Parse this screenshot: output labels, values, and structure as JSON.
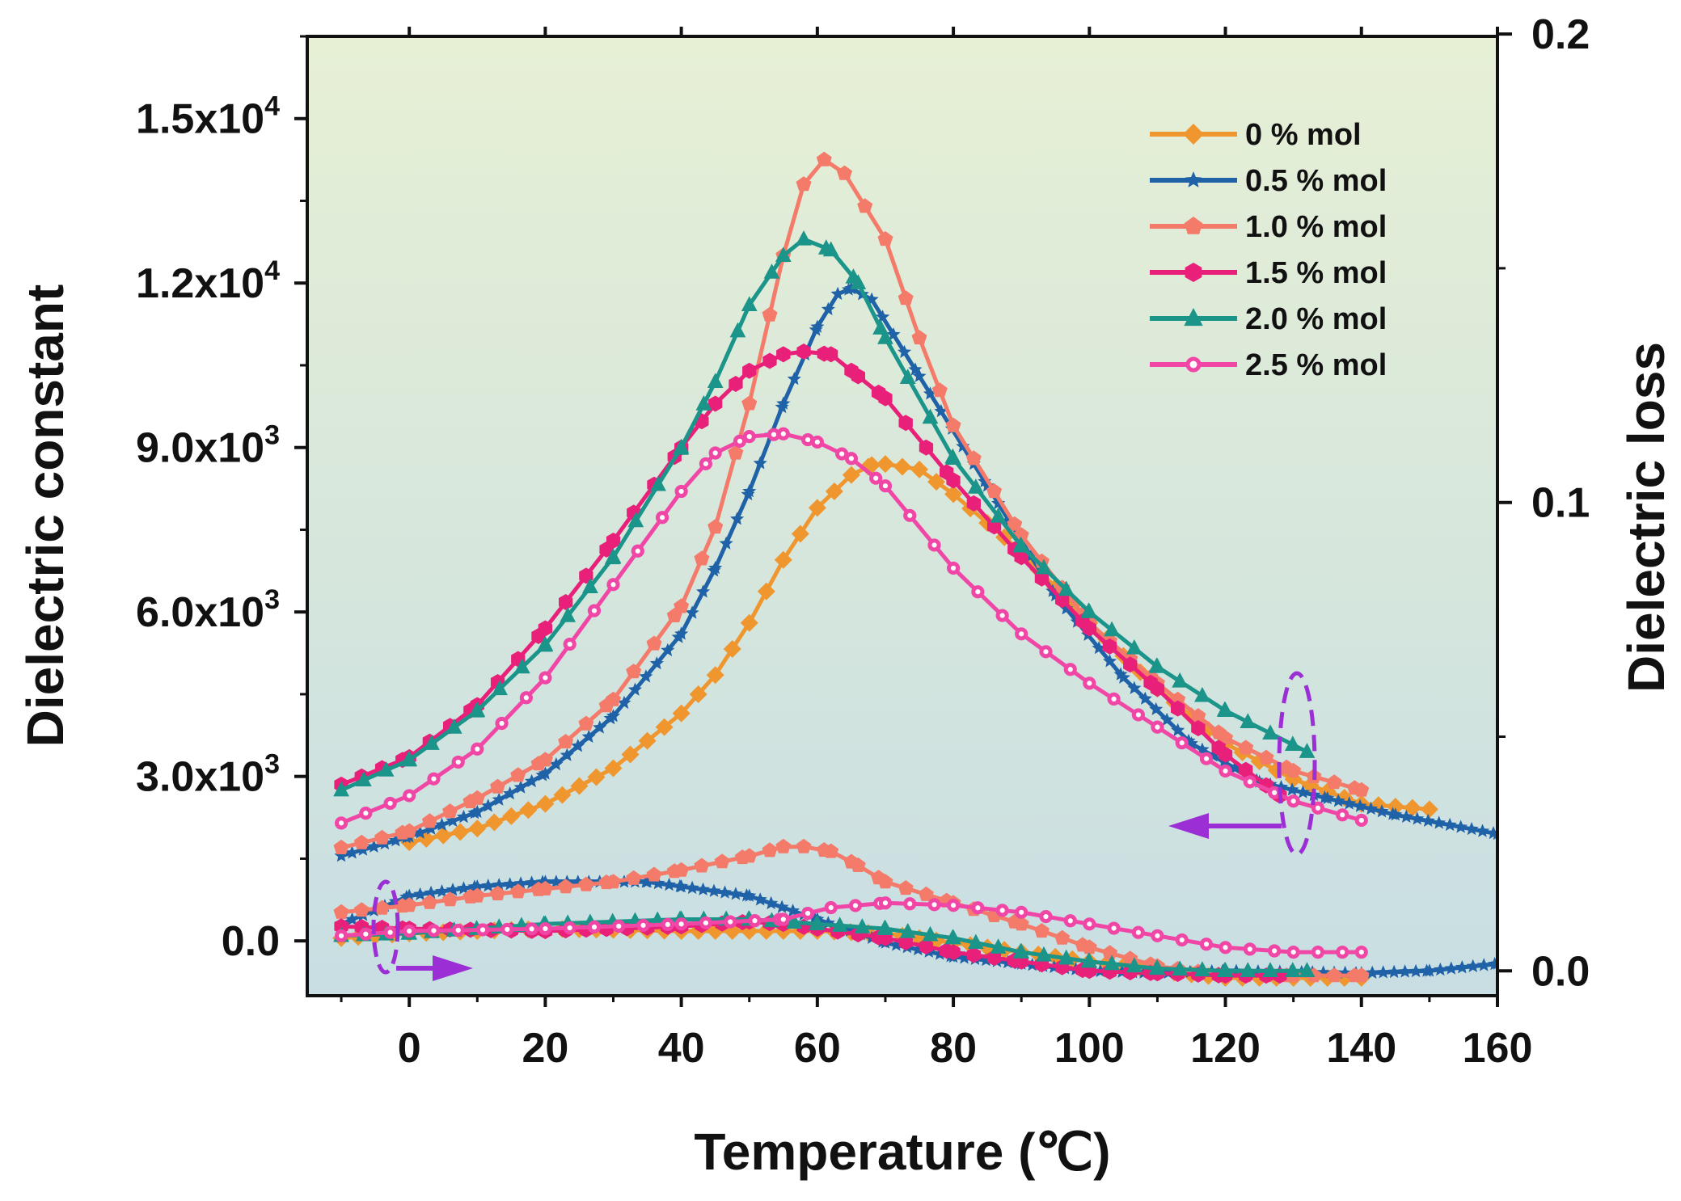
{
  "chart_data": {
    "type": "line",
    "title": "",
    "xlabel": "Temperature (℃)",
    "ylabel": "Dielectric constant",
    "y2label": "Dielectric loss",
    "xlim": [
      -15,
      160
    ],
    "ylim": [
      -1000,
      16500
    ],
    "y2lim": [
      -0.0053,
      0.1995
    ],
    "legend_position": "top-right",
    "x_tick_labels": [
      "0",
      "20",
      "40",
      "60",
      "80",
      "100",
      "120",
      "140",
      "160"
    ],
    "y_tick_labels": [
      {
        "mantissa": "0.0",
        "exp": ""
      },
      {
        "mantissa": "3.0x10",
        "exp": "3"
      },
      {
        "mantissa": "6.0x10",
        "exp": "3"
      },
      {
        "mantissa": "9.0x10",
        "exp": "3"
      },
      {
        "mantissa": "1.2x10",
        "exp": "4"
      },
      {
        "mantissa": "1.5x10",
        "exp": "4"
      }
    ],
    "y2_tick_labels": [
      "0.0",
      "0.1",
      "0.2"
    ],
    "series": [
      {
        "name": "0 % mol",
        "color": "#F0962E",
        "marker": "diamond",
        "permittivity": [
          [
            0,
            1800
          ],
          [
            10,
            2050
          ],
          [
            20,
            2500
          ],
          [
            30,
            3150
          ],
          [
            40,
            4150
          ],
          [
            45,
            4850
          ],
          [
            50,
            5800
          ],
          [
            55,
            6950
          ],
          [
            60,
            7900
          ],
          [
            65,
            8500
          ],
          [
            68,
            8680
          ],
          [
            70,
            8700
          ],
          [
            75,
            8600
          ],
          [
            80,
            8150
          ],
          [
            90,
            7100
          ],
          [
            100,
            5800
          ],
          [
            110,
            4600
          ],
          [
            120,
            3600
          ],
          [
            130,
            2950
          ],
          [
            140,
            2500
          ],
          [
            150,
            2400
          ]
        ],
        "loss": [
          [
            -10,
            0.007
          ],
          [
            0,
            0.008
          ],
          [
            20,
            0.009
          ],
          [
            40,
            0.0085
          ],
          [
            60,
            0.0085
          ],
          [
            70,
            0.008
          ],
          [
            80,
            0.006
          ],
          [
            90,
            0.004
          ],
          [
            100,
            0.002
          ],
          [
            110,
            0.0
          ],
          [
            120,
            -0.0015
          ],
          [
            130,
            -0.0015
          ],
          [
            140,
            -0.0015
          ]
        ]
      },
      {
        "name": "0.5 % mol",
        "color": "#1F62A8",
        "marker": "star",
        "permittivity": [
          [
            -10,
            1550
          ],
          [
            0,
            1900
          ],
          [
            10,
            2350
          ],
          [
            20,
            3050
          ],
          [
            30,
            4100
          ],
          [
            40,
            5600
          ],
          [
            45,
            6800
          ],
          [
            50,
            8200
          ],
          [
            55,
            9800
          ],
          [
            60,
            11200
          ],
          [
            63,
            11800
          ],
          [
            65,
            11900
          ],
          [
            68,
            11700
          ],
          [
            75,
            10300
          ],
          [
            85,
            8300
          ],
          [
            95,
            6300
          ],
          [
            105,
            4800
          ],
          [
            115,
            3600
          ],
          [
            125,
            2900
          ],
          [
            135,
            2600
          ],
          [
            145,
            2300
          ],
          [
            160,
            1950
          ]
        ],
        "loss": [
          [
            -10,
            0.01
          ],
          [
            0,
            0.016
          ],
          [
            10,
            0.018
          ],
          [
            20,
            0.019
          ],
          [
            30,
            0.019
          ],
          [
            35,
            0.019
          ],
          [
            40,
            0.018
          ],
          [
            50,
            0.016
          ],
          [
            60,
            0.011
          ],
          [
            70,
            0.006
          ],
          [
            80,
            0.003
          ],
          [
            90,
            0.0015
          ],
          [
            100,
            0.0
          ],
          [
            110,
            -0.0005
          ],
          [
            120,
            0.0
          ],
          [
            140,
            -0.0005
          ],
          [
            150,
            0.0
          ],
          [
            160,
            0.0015
          ]
        ]
      },
      {
        "name": "1.0 % mol",
        "color": "#F47A6A",
        "marker": "pentagon",
        "permittivity": [
          [
            -10,
            1700
          ],
          [
            0,
            2000
          ],
          [
            10,
            2600
          ],
          [
            20,
            3300
          ],
          [
            30,
            4400
          ],
          [
            40,
            6100
          ],
          [
            45,
            7550
          ],
          [
            50,
            9800
          ],
          [
            55,
            12500
          ],
          [
            58,
            13800
          ],
          [
            61,
            14250
          ],
          [
            64,
            14000
          ],
          [
            70,
            12800
          ],
          [
            75,
            11000
          ],
          [
            80,
            9400
          ],
          [
            90,
            7400
          ],
          [
            100,
            5800
          ],
          [
            110,
            4700
          ],
          [
            120,
            3700
          ],
          [
            130,
            3100
          ],
          [
            140,
            2750
          ]
        ],
        "loss": [
          [
            -10,
            0.0125
          ],
          [
            0,
            0.014
          ],
          [
            10,
            0.016
          ],
          [
            20,
            0.0175
          ],
          [
            30,
            0.019
          ],
          [
            40,
            0.0215
          ],
          [
            50,
            0.0245
          ],
          [
            55,
            0.0265
          ],
          [
            58,
            0.0265
          ],
          [
            62,
            0.0255
          ],
          [
            66,
            0.0225
          ],
          [
            70,
            0.019
          ],
          [
            80,
            0.0145
          ],
          [
            90,
            0.01
          ],
          [
            100,
            0.005
          ],
          [
            110,
            0.001
          ],
          [
            120,
            -0.001
          ],
          [
            130,
            -0.001
          ],
          [
            140,
            -0.001
          ]
        ]
      },
      {
        "name": "1.5 % mol",
        "color": "#E8207A",
        "marker": "hexagon",
        "permittivity": [
          [
            -10,
            2850
          ],
          [
            0,
            3350
          ],
          [
            10,
            4300
          ],
          [
            20,
            5700
          ],
          [
            30,
            7300
          ],
          [
            40,
            9000
          ],
          [
            45,
            9800
          ],
          [
            50,
            10400
          ],
          [
            55,
            10700
          ],
          [
            58,
            10750
          ],
          [
            62,
            10700
          ],
          [
            66,
            10300
          ],
          [
            70,
            9900
          ],
          [
            80,
            8400
          ],
          [
            90,
            7000
          ],
          [
            100,
            5700
          ],
          [
            110,
            4600
          ],
          [
            120,
            3400
          ],
          [
            128,
            2650
          ]
        ],
        "loss": [
          [
            -10,
            0.0095
          ],
          [
            0,
            0.009
          ],
          [
            20,
            0.0085
          ],
          [
            40,
            0.0095
          ],
          [
            50,
            0.0105
          ],
          [
            55,
            0.01
          ],
          [
            60,
            0.009
          ],
          [
            70,
            0.007
          ],
          [
            80,
            0.004
          ],
          [
            90,
            0.002
          ],
          [
            100,
            0.0
          ],
          [
            110,
            -0.0005
          ],
          [
            120,
            -0.001
          ],
          [
            128,
            -0.001
          ]
        ]
      },
      {
        "name": "2.0 % mol",
        "color": "#1B948A",
        "marker": "triangle",
        "permittivity": [
          [
            -10,
            2750
          ],
          [
            0,
            3300
          ],
          [
            10,
            4200
          ],
          [
            20,
            5400
          ],
          [
            30,
            7000
          ],
          [
            40,
            9000
          ],
          [
            45,
            10200
          ],
          [
            50,
            11600
          ],
          [
            55,
            12500
          ],
          [
            58,
            12800
          ],
          [
            62,
            12600
          ],
          [
            66,
            12000
          ],
          [
            70,
            11000
          ],
          [
            80,
            8800
          ],
          [
            90,
            7200
          ],
          [
            100,
            6000
          ],
          [
            110,
            5000
          ],
          [
            120,
            4200
          ],
          [
            132,
            3450
          ]
        ],
        "loss": [
          [
            -10,
            0.0075
          ],
          [
            0,
            0.008
          ],
          [
            20,
            0.01
          ],
          [
            40,
            0.011
          ],
          [
            50,
            0.011
          ],
          [
            60,
            0.01
          ],
          [
            70,
            0.009
          ],
          [
            80,
            0.007
          ],
          [
            90,
            0.004
          ],
          [
            100,
            0.002
          ],
          [
            110,
            0.0005
          ],
          [
            120,
            0.0
          ],
          [
            132,
            0.0
          ]
        ]
      },
      {
        "name": "2.5 % mol",
        "color": "#F046A6",
        "marker": "circle",
        "permittivity": [
          [
            -10,
            2150
          ],
          [
            0,
            2650
          ],
          [
            10,
            3500
          ],
          [
            20,
            4800
          ],
          [
            30,
            6500
          ],
          [
            40,
            8200
          ],
          [
            45,
            8900
          ],
          [
            50,
            9200
          ],
          [
            55,
            9250
          ],
          [
            60,
            9100
          ],
          [
            65,
            8800
          ],
          [
            70,
            8300
          ],
          [
            80,
            6800
          ],
          [
            90,
            5600
          ],
          [
            100,
            4700
          ],
          [
            110,
            3900
          ],
          [
            120,
            3100
          ],
          [
            130,
            2550
          ],
          [
            140,
            2200
          ]
        ],
        "loss": [
          [
            -10,
            0.0075
          ],
          [
            0,
            0.0085
          ],
          [
            20,
            0.009
          ],
          [
            40,
            0.01
          ],
          [
            55,
            0.011
          ],
          [
            62,
            0.0135
          ],
          [
            70,
            0.0145
          ],
          [
            80,
            0.014
          ],
          [
            90,
            0.0125
          ],
          [
            100,
            0.01
          ],
          [
            110,
            0.0075
          ],
          [
            120,
            0.005
          ],
          [
            130,
            0.004
          ],
          [
            140,
            0.004
          ]
        ]
      }
    ],
    "annotations": [
      "left-pointing arrow marks dielectric constant curves",
      "right-pointing arrow marks dielectric loss curves"
    ]
  },
  "colors": {
    "bg_top": "#E7F0D5",
    "bg_bottom": "#C8DEE3",
    "arrow": "#9B2FD5"
  }
}
